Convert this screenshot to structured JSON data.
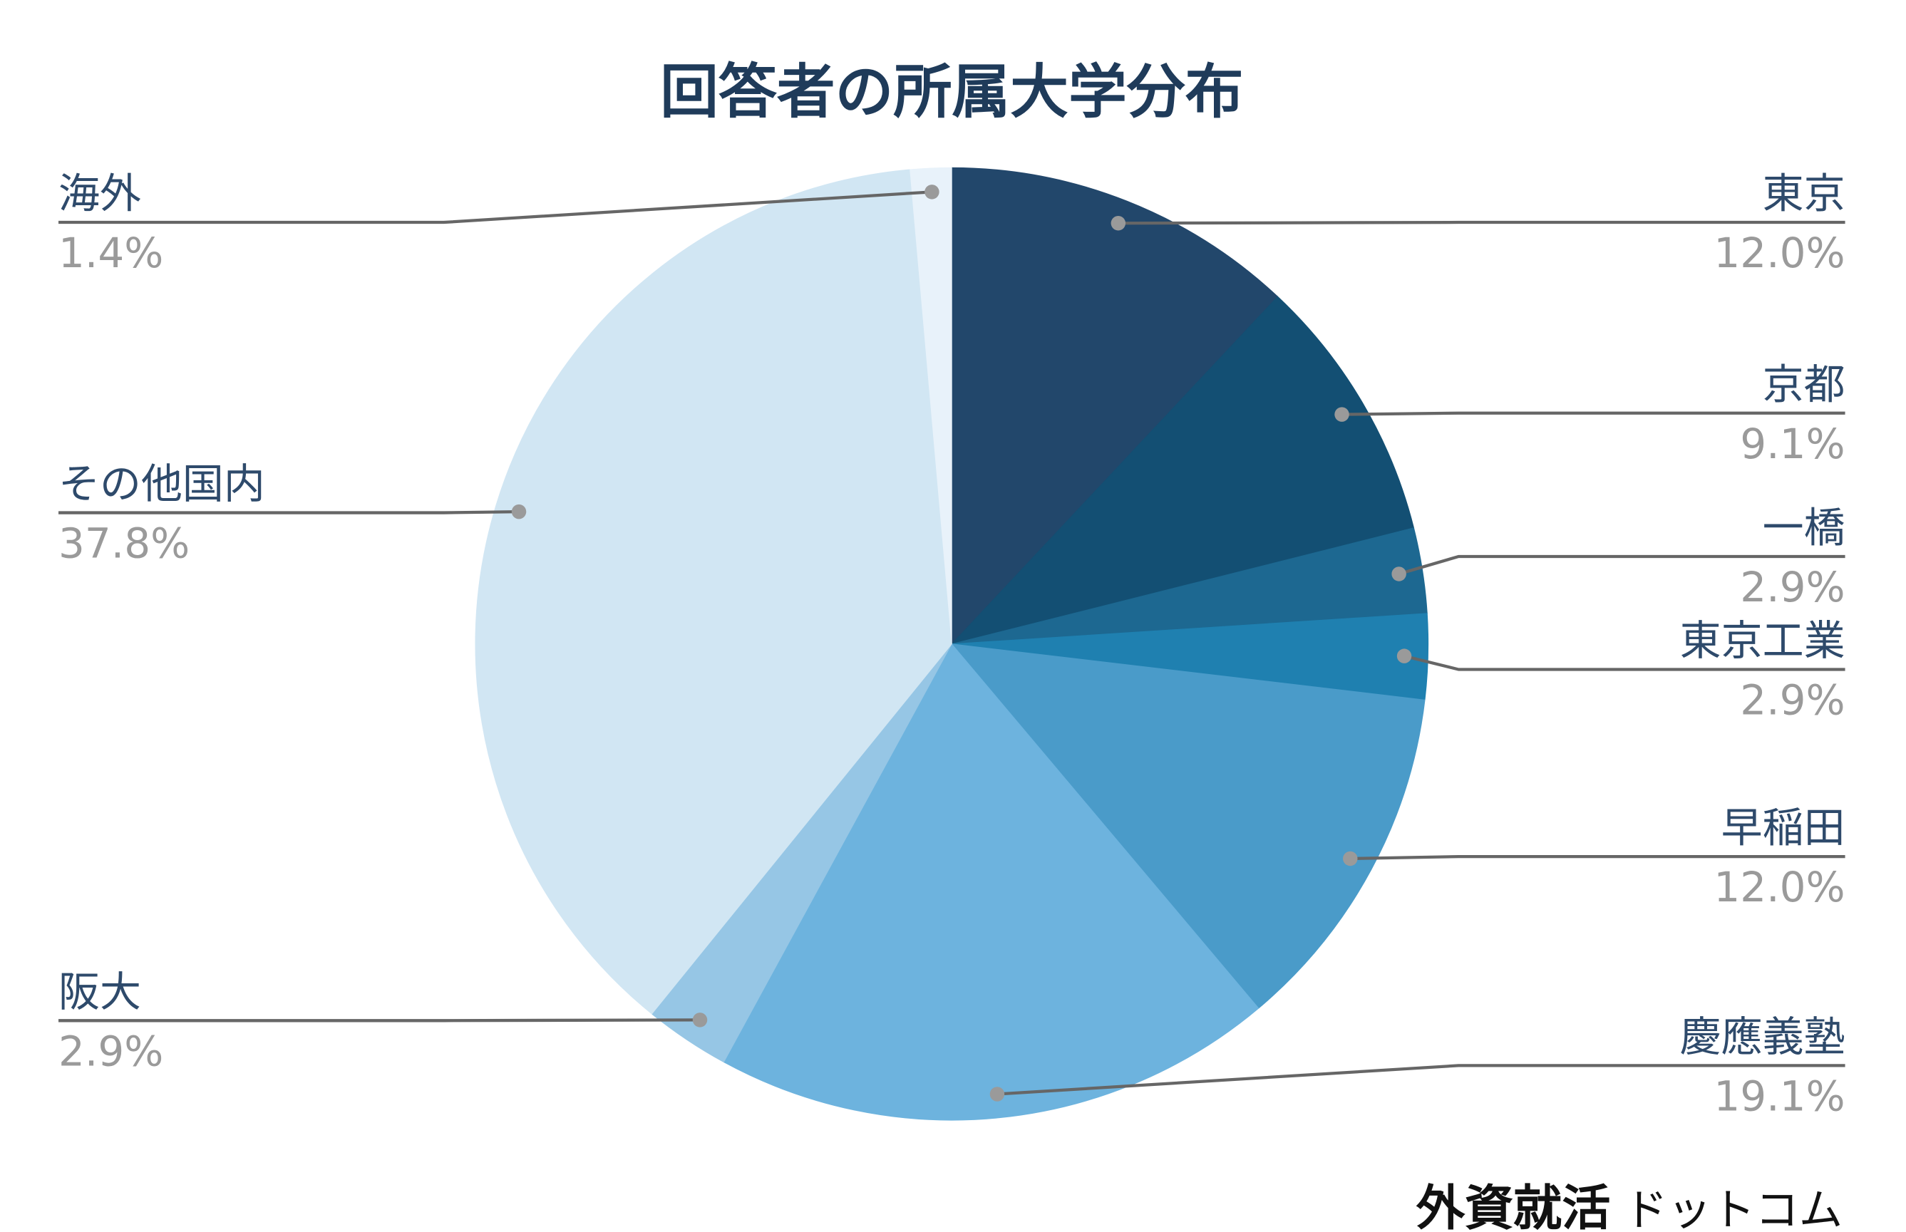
{
  "chart_data": {
    "type": "pie",
    "title": "回答者の所属大学分布",
    "categories": [
      "東京",
      "京都",
      "一橋",
      "東京工業",
      "早稲田",
      "慶應義塾",
      "阪大",
      "その他国内",
      "海外"
    ],
    "values": [
      12.0,
      9.1,
      2.9,
      2.9,
      12.0,
      19.1,
      2.9,
      37.8,
      1.4
    ],
    "value_labels": [
      "12.0%",
      "9.1%",
      "2.9%",
      "2.9%",
      "12.0%",
      "19.1%",
      "2.9%",
      "37.8%",
      "1.4%"
    ],
    "colors": [
      "#22476b",
      "#134f73",
      "#1d6891",
      "#1f80b0",
      "#4a9bc9",
      "#6db3de",
      "#96c6e5",
      "#d1e6f3",
      "#e8f2fa"
    ]
  },
  "footer": {
    "logo_main": "外資就活",
    "logo_sub": "ドットコム"
  }
}
